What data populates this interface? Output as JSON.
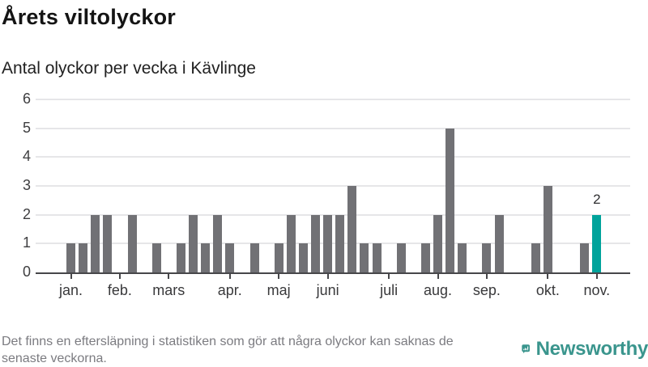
{
  "header": {
    "title": "Årets viltolyckor",
    "subtitle": "Antal olyckor per vecka i Kävlinge"
  },
  "chart_data": {
    "type": "bar",
    "title": "Årets viltolyckor",
    "subtitle": "Antal olyckor per vecka i Kävlinge",
    "x_description": "weeks of the year, January through November",
    "values": [
      1,
      1,
      2,
      2,
      0,
      2,
      0,
      1,
      0,
      1,
      2,
      1,
      2,
      1,
      0,
      1,
      0,
      1,
      2,
      1,
      2,
      2,
      2,
      3,
      1,
      1,
      0,
      1,
      0,
      1,
      2,
      5,
      1,
      0,
      1,
      2,
      0,
      0,
      1,
      3,
      0,
      0,
      1,
      2
    ],
    "month_ticks": [
      {
        "label": "jan.",
        "week": 0
      },
      {
        "label": "feb.",
        "week": 4
      },
      {
        "label": "mars",
        "week": 8
      },
      {
        "label": "apr.",
        "week": 13
      },
      {
        "label": "maj",
        "week": 17
      },
      {
        "label": "juni",
        "week": 21
      },
      {
        "label": "juli",
        "week": 26
      },
      {
        "label": "aug.",
        "week": 30
      },
      {
        "label": "sep.",
        "week": 34
      },
      {
        "label": "okt.",
        "week": 39
      },
      {
        "label": "nov.",
        "week": 43
      }
    ],
    "ylim": [
      0,
      6
    ],
    "yticks": [
      0,
      1,
      2,
      3,
      4,
      5,
      6
    ],
    "grid": true,
    "legend": "none",
    "bar_color": "#717175",
    "highlight": {
      "index": 43,
      "label": "2",
      "color": "#00a39b"
    }
  },
  "footer": {
    "note_lines": [
      "Det finns en eftersläpning i statistiken som gör att några olyckor kan saknas de",
      "senaste veckorna."
    ]
  },
  "logo": {
    "text": "Newsworthy",
    "color": "#3a958d"
  }
}
